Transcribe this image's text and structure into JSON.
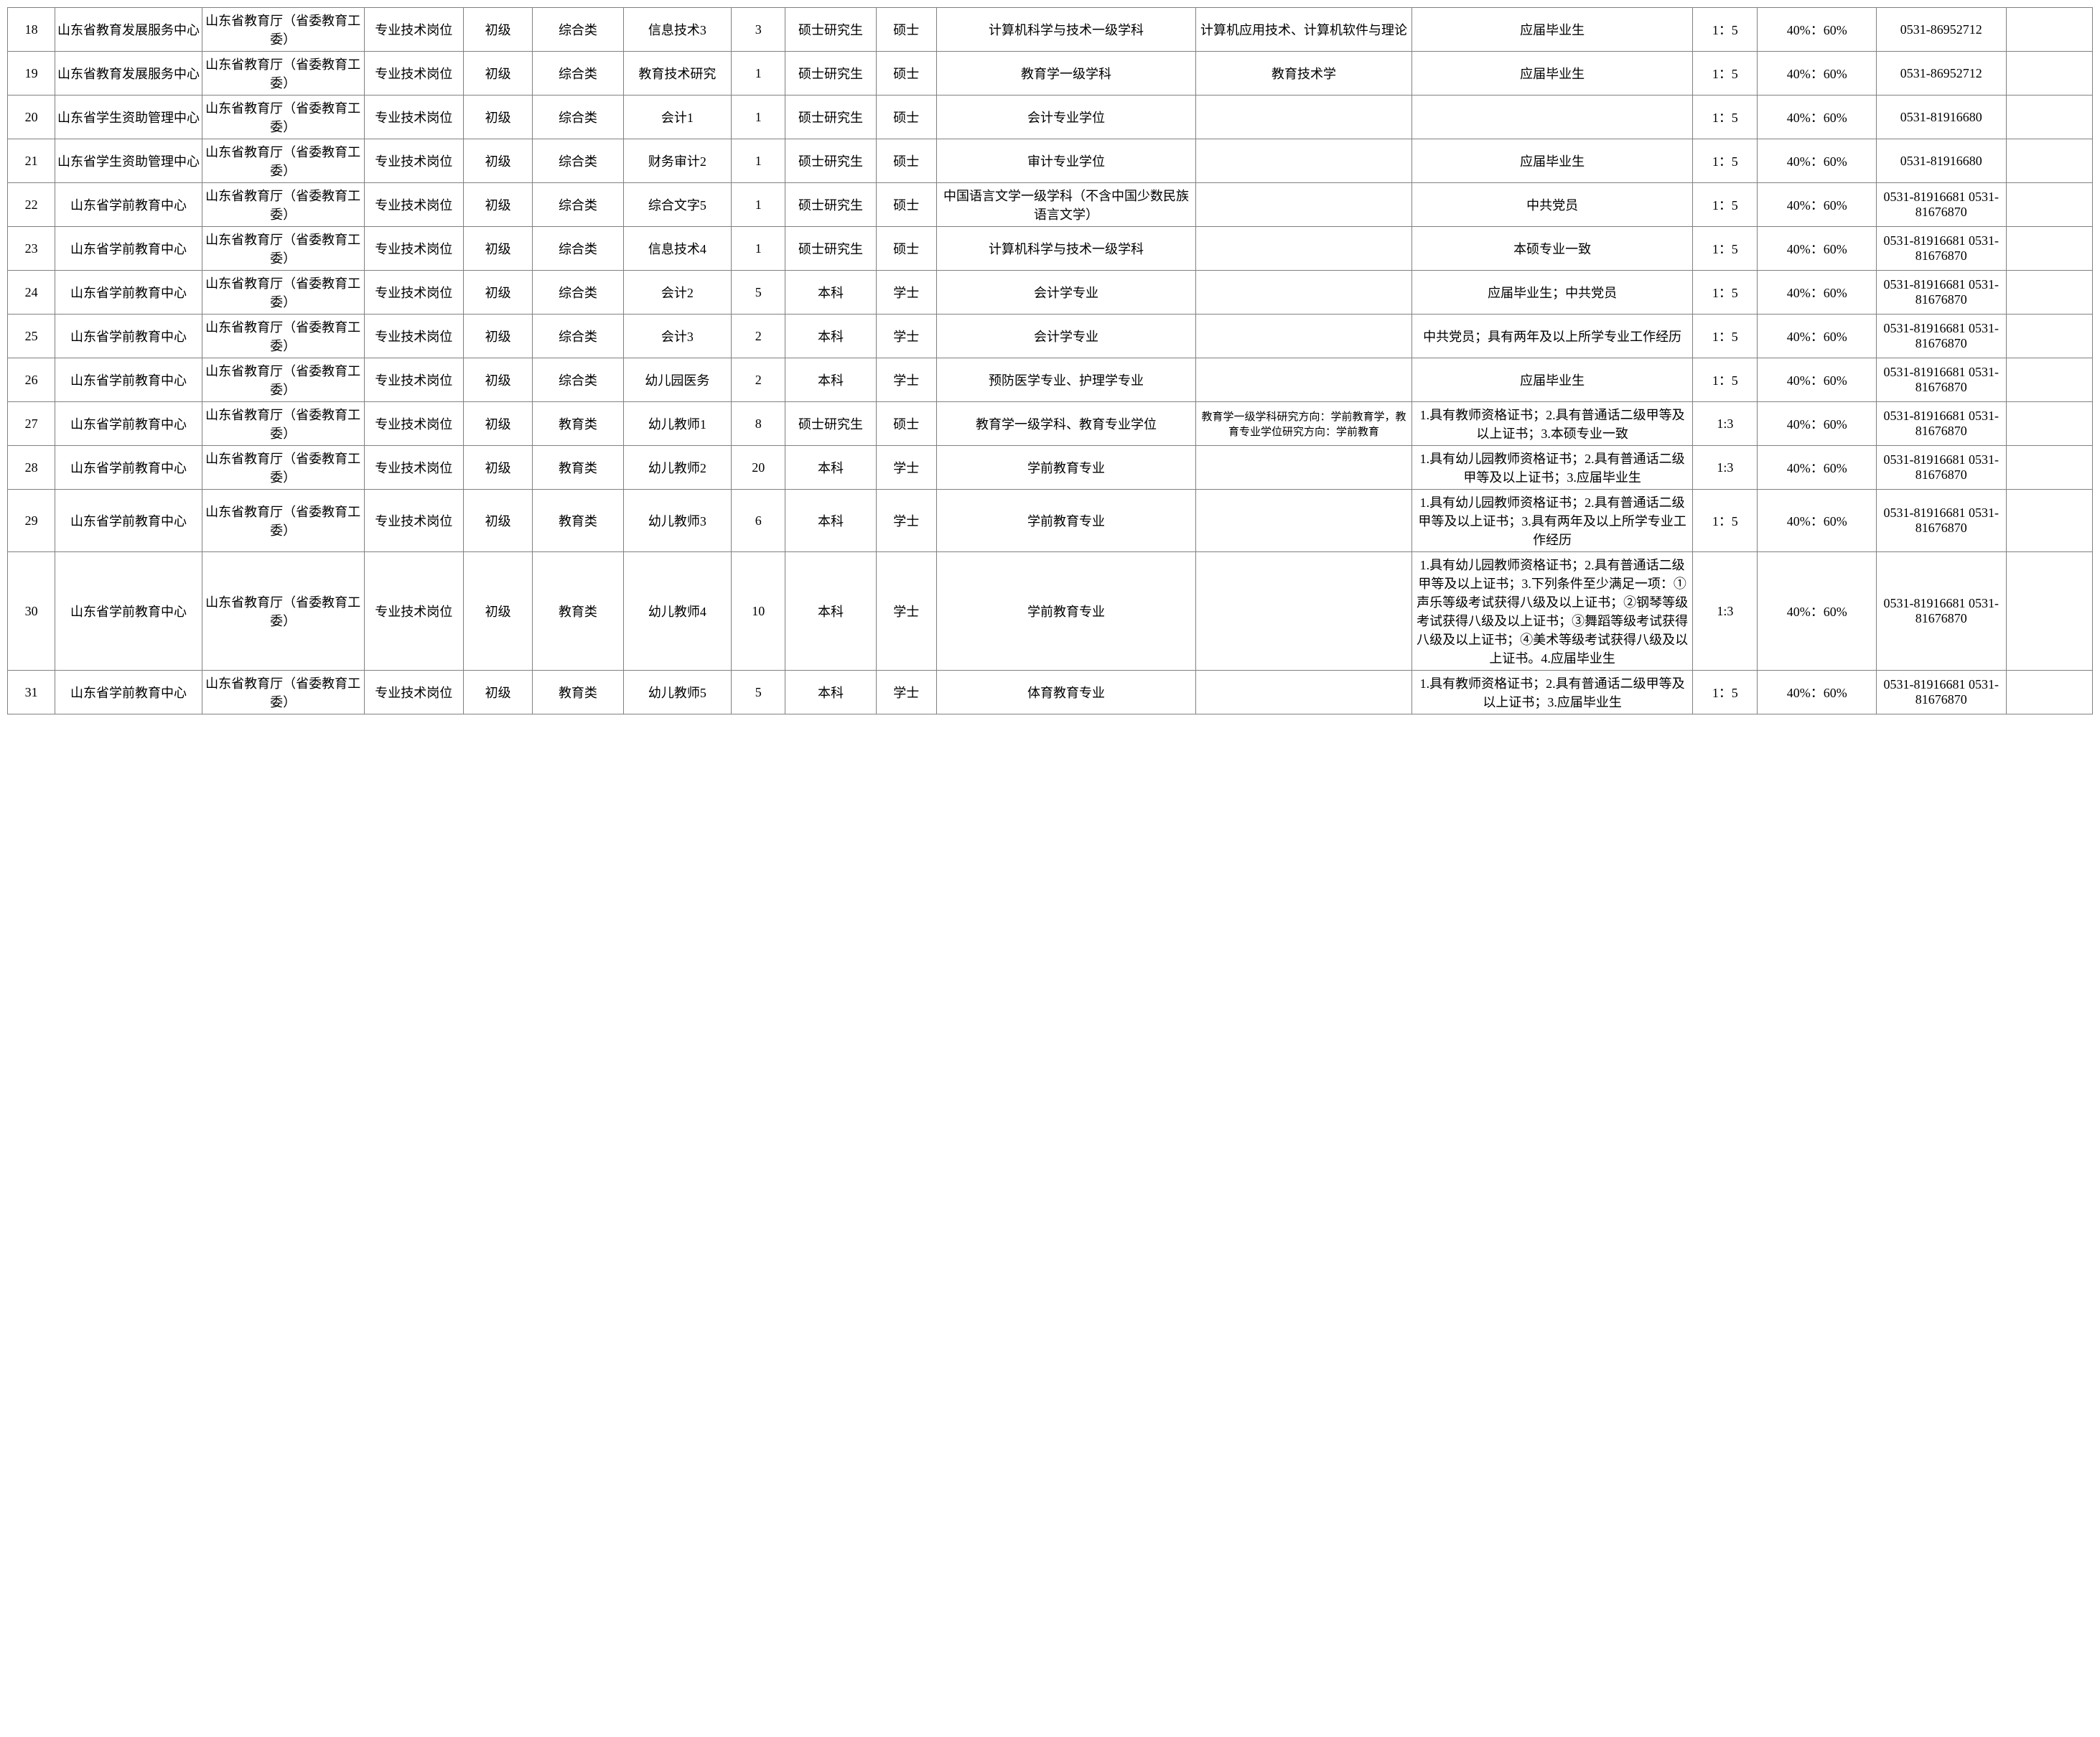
{
  "table": {
    "background_color": "#ffffff",
    "border_color": "#808080",
    "text_color": "#000000",
    "font_family": "SimSun",
    "base_font_size": 18,
    "small_font_size": 15,
    "column_widths_pct": [
      2.2,
      6.8,
      7.5,
      4.6,
      3.2,
      4.2,
      5.0,
      2.5,
      4.2,
      2.8,
      12.0,
      10.0,
      13.0,
      3.0,
      5.5,
      6.0,
      4.0
    ],
    "rows": [
      {
        "idx": "18",
        "unit": "山东省教育发展服务中心",
        "dept": "山东省教育厅（省委教育工委）",
        "postType": "专业技术岗位",
        "level": "初级",
        "category": "综合类",
        "postName": "信息技术3",
        "count": "3",
        "edu": "硕士研究生",
        "degree": "硕士",
        "major": "计算机科学与技术一级学科",
        "direction": "计算机应用技术、计算机软件与理论",
        "other": "应届毕业生",
        "ratio": "1：5",
        "weights": "40%：60%",
        "phone": "0531-86952712",
        "note": ""
      },
      {
        "idx": "19",
        "unit": "山东省教育发展服务中心",
        "dept": "山东省教育厅（省委教育工委）",
        "postType": "专业技术岗位",
        "level": "初级",
        "category": "综合类",
        "postName": "教育技术研究",
        "count": "1",
        "edu": "硕士研究生",
        "degree": "硕士",
        "major": "教育学一级学科",
        "direction": "教育技术学",
        "other": "应届毕业生",
        "ratio": "1：5",
        "weights": "40%：60%",
        "phone": "0531-86952712",
        "note": ""
      },
      {
        "idx": "20",
        "unit": "山东省学生资助管理中心",
        "dept": "山东省教育厅（省委教育工委）",
        "postType": "专业技术岗位",
        "level": "初级",
        "category": "综合类",
        "postName": "会计1",
        "count": "1",
        "edu": "硕士研究生",
        "degree": "硕士",
        "major": "会计专业学位",
        "direction": "",
        "other": "",
        "ratio": "1：5",
        "weights": "40%：60%",
        "phone": "0531-81916680",
        "note": ""
      },
      {
        "idx": "21",
        "unit": "山东省学生资助管理中心",
        "dept": "山东省教育厅（省委教育工委）",
        "postType": "专业技术岗位",
        "level": "初级",
        "category": "综合类",
        "postName": "财务审计2",
        "count": "1",
        "edu": "硕士研究生",
        "degree": "硕士",
        "major": "审计专业学位",
        "direction": "",
        "other": "应届毕业生",
        "ratio": "1：5",
        "weights": "40%：60%",
        "phone": "0531-81916680",
        "note": ""
      },
      {
        "idx": "22",
        "unit": "山东省学前教育中心",
        "dept": "山东省教育厅（省委教育工委）",
        "postType": "专业技术岗位",
        "level": "初级",
        "category": "综合类",
        "postName": "综合文字5",
        "count": "1",
        "edu": "硕士研究生",
        "degree": "硕士",
        "major": "中国语言文学一级学科（不含中国少数民族语言文学）",
        "direction": "",
        "other": "中共党员",
        "ratio": "1：5",
        "weights": "40%：60%",
        "phone": "0531-81916681 0531-81676870",
        "note": ""
      },
      {
        "idx": "23",
        "unit": "山东省学前教育中心",
        "dept": "山东省教育厅（省委教育工委）",
        "postType": "专业技术岗位",
        "level": "初级",
        "category": "综合类",
        "postName": "信息技术4",
        "count": "1",
        "edu": "硕士研究生",
        "degree": "硕士",
        "major": "计算机科学与技术一级学科",
        "direction": "",
        "other": "本硕专业一致",
        "ratio": "1：5",
        "weights": "40%：60%",
        "phone": "0531-81916681 0531-81676870",
        "note": ""
      },
      {
        "idx": "24",
        "unit": "山东省学前教育中心",
        "dept": "山东省教育厅（省委教育工委）",
        "postType": "专业技术岗位",
        "level": "初级",
        "category": "综合类",
        "postName": "会计2",
        "count": "5",
        "edu": "本科",
        "degree": "学士",
        "major": "会计学专业",
        "direction": "",
        "other": "应届毕业生；中共党员",
        "ratio": "1：5",
        "weights": "40%：60%",
        "phone": "0531-81916681 0531-81676870",
        "note": ""
      },
      {
        "idx": "25",
        "unit": "山东省学前教育中心",
        "dept": "山东省教育厅（省委教育工委）",
        "postType": "专业技术岗位",
        "level": "初级",
        "category": "综合类",
        "postName": "会计3",
        "count": "2",
        "edu": "本科",
        "degree": "学士",
        "major": "会计学专业",
        "direction": "",
        "other": "中共党员；具有两年及以上所学专业工作经历",
        "ratio": "1：5",
        "weights": "40%：60%",
        "phone": "0531-81916681 0531-81676870",
        "note": ""
      },
      {
        "idx": "26",
        "unit": "山东省学前教育中心",
        "dept": "山东省教育厅（省委教育工委）",
        "postType": "专业技术岗位",
        "level": "初级",
        "category": "综合类",
        "postName": "幼儿园医务",
        "count": "2",
        "edu": "本科",
        "degree": "学士",
        "major": "预防医学专业、护理学专业",
        "direction": "",
        "other": "应届毕业生",
        "ratio": "1：5",
        "weights": "40%：60%",
        "phone": "0531-81916681 0531-81676870",
        "note": ""
      },
      {
        "idx": "27",
        "unit": "山东省学前教育中心",
        "dept": "山东省教育厅（省委教育工委）",
        "postType": "专业技术岗位",
        "level": "初级",
        "category": "教育类",
        "postName": "幼儿教师1",
        "count": "8",
        "edu": "硕士研究生",
        "degree": "硕士",
        "major": "教育学一级学科、教育专业学位",
        "direction": "教育学一级学科研究方向：学前教育学，教育专业学位研究方向：学前教育",
        "directionSmall": true,
        "other": "1.具有教师资格证书；2.具有普通话二级甲等及以上证书；3.本硕专业一致",
        "ratio": "1:3",
        "weights": "40%：60%",
        "phone": "0531-81916681 0531-81676870",
        "note": ""
      },
      {
        "idx": "28",
        "unit": "山东省学前教育中心",
        "dept": "山东省教育厅（省委教育工委）",
        "postType": "专业技术岗位",
        "level": "初级",
        "category": "教育类",
        "postName": "幼儿教师2",
        "count": "20",
        "edu": "本科",
        "degree": "学士",
        "major": "学前教育专业",
        "direction": "",
        "other": "1.具有幼儿园教师资格证书；2.具有普通话二级甲等及以上证书；3.应届毕业生",
        "ratio": "1:3",
        "weights": "40%：60%",
        "phone": "0531-81916681 0531-81676870",
        "note": ""
      },
      {
        "idx": "29",
        "unit": "山东省学前教育中心",
        "dept": "山东省教育厅（省委教育工委）",
        "postType": "专业技术岗位",
        "level": "初级",
        "category": "教育类",
        "postName": "幼儿教师3",
        "count": "6",
        "edu": "本科",
        "degree": "学士",
        "major": "学前教育专业",
        "direction": "",
        "other": "1.具有幼儿园教师资格证书；2.具有普通话二级甲等及以上证书；3.具有两年及以上所学专业工作经历",
        "ratio": "1：5",
        "weights": "40%：60%",
        "phone": "0531-81916681 0531-81676870",
        "note": ""
      },
      {
        "idx": "30",
        "unit": "山东省学前教育中心",
        "dept": "山东省教育厅（省委教育工委）",
        "postType": "专业技术岗位",
        "level": "初级",
        "category": "教育类",
        "postName": "幼儿教师4",
        "count": "10",
        "edu": "本科",
        "degree": "学士",
        "major": "学前教育专业",
        "direction": "",
        "other": "1.具有幼儿园教师资格证书；2.具有普通话二级甲等及以上证书；3.下列条件至少满足一项：①声乐等级考试获得八级及以上证书；②钢琴等级考试获得八级及以上证书；③舞蹈等级考试获得八级及以上证书；④美术等级考试获得八级及以上证书。4.应届毕业生",
        "ratio": "1:3",
        "weights": "40%：60%",
        "phone": "0531-81916681 0531-81676870",
        "note": ""
      },
      {
        "idx": "31",
        "unit": "山东省学前教育中心",
        "dept": "山东省教育厅（省委教育工委）",
        "postType": "专业技术岗位",
        "level": "初级",
        "category": "教育类",
        "postName": "幼儿教师5",
        "count": "5",
        "edu": "本科",
        "degree": "学士",
        "major": "体育教育专业",
        "direction": "",
        "other": "1.具有教师资格证书；2.具有普通话二级甲等及以上证书；3.应届毕业生",
        "ratio": "1：5",
        "weights": "40%：60%",
        "phone": "0531-81916681 0531-81676870",
        "note": ""
      }
    ]
  }
}
